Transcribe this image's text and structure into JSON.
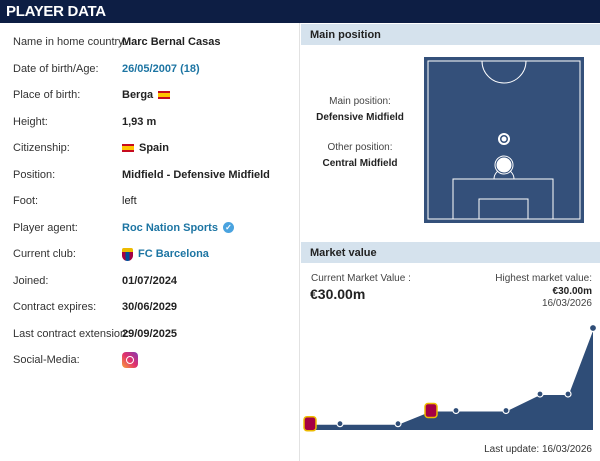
{
  "header": {
    "title": "PLAYER DATA"
  },
  "player_data": [
    {
      "label": "Name in home country:",
      "value": "Marc Bernal Casas"
    },
    {
      "label": "Date of birth/Age:",
      "value": "26/05/2007 (18)",
      "link": true
    },
    {
      "label": "Place of birth:",
      "value": "Berga",
      "flag": "spain-flag-icon"
    },
    {
      "label": "Height:",
      "value": "1,93 m"
    },
    {
      "label": "Citizenship:",
      "value": "Spain",
      "flag_before": "spain-flag-icon"
    },
    {
      "label": "Position:",
      "value": "Midfield - Defensive Midfield"
    },
    {
      "label": "Foot:",
      "value": "left",
      "normal": true
    },
    {
      "label": "Player agent:",
      "value": "Roc Nation Sports",
      "link": true,
      "icon": "verified-check-icon"
    },
    {
      "label": "Current club:",
      "value": "FC Barcelona",
      "link": true,
      "crest": "fc-barcelona-crest-icon"
    },
    {
      "label": "Joined:",
      "value": "01/07/2024"
    },
    {
      "label": "Contract expires:",
      "value": "30/06/2029"
    },
    {
      "label": "Last contract extension:",
      "value": "29/09/2025"
    },
    {
      "label": "Social-Media:",
      "value": "",
      "icon": "instagram-icon"
    }
  ],
  "main_position": {
    "title": "Main position",
    "main_label": "Main position:",
    "main_value": "Defensive Midfield",
    "other_label": "Other position:",
    "other_value": "Central Midfield"
  },
  "market_value": {
    "title": "Market value",
    "current_label": "Current Market Value :",
    "current_value": "€30.00m",
    "highest_label": "Highest market value:",
    "highest_value": "€30.00m",
    "highest_date": "16/03/2026",
    "last_update_label": "Last update:",
    "last_update_value": "16/03/2026"
  },
  "chart_data": {
    "type": "area",
    "values": [
      1,
      1,
      1,
      5,
      5,
      5,
      10,
      10,
      30
    ],
    "club_markers": [
      0,
      3
    ],
    "ylim": [
      0,
      30
    ],
    "colors": {
      "fill": "#2f4d77",
      "line": "#ffffff"
    }
  },
  "colors": {
    "header": "#0d1e44",
    "section": "#d5e2ed",
    "link": "#1d75a3",
    "pitch": "#34507a"
  }
}
